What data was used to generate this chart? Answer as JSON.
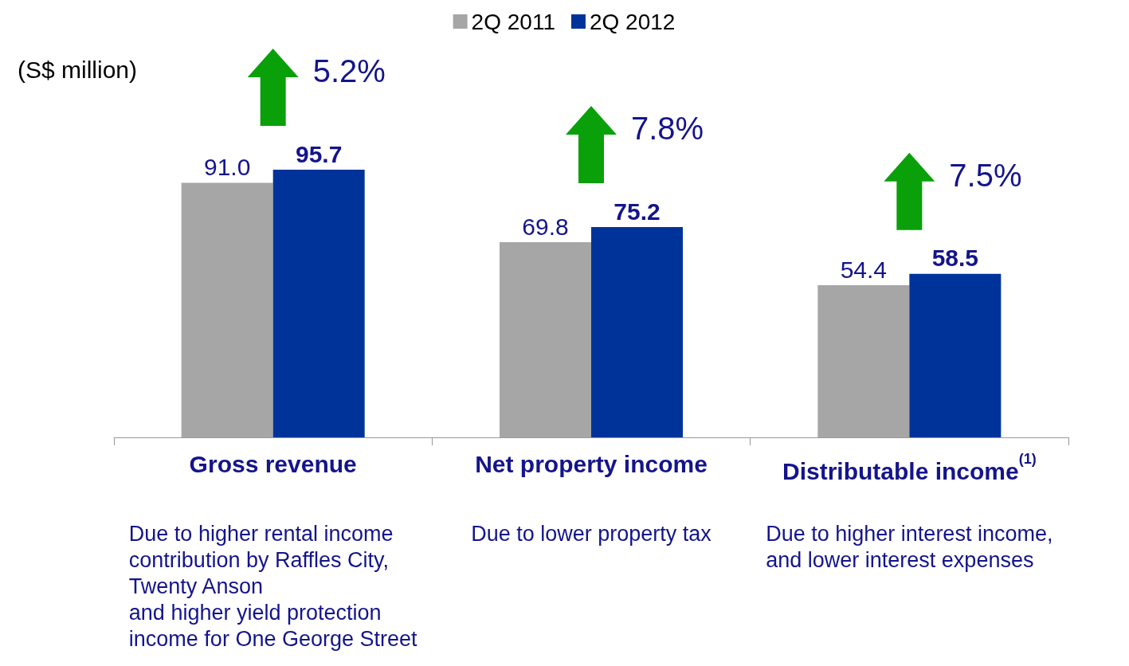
{
  "chart_data": {
    "type": "bar",
    "ylabel": "(S$ million)",
    "categories": [
      "Gross revenue",
      "Net property income",
      "Distributable income$^{(1)}$"
    ],
    "series": [
      {
        "name": "2Q 2011",
        "color": "#a6a6a6",
        "values": [
          91.0,
          69.8,
          54.4
        ],
        "value_labels": [
          "91.0",
          "69.8",
          "54.4"
        ]
      },
      {
        "name": "2Q 2012",
        "color": "#003399",
        "values": [
          95.7,
          75.2,
          58.5
        ],
        "value_labels": [
          "95.7",
          "75.2",
          "58.5"
        ]
      }
    ],
    "legend": "top",
    "grid": false,
    "annotations": [
      {
        "text": "5.2%",
        "x": "Gross revenue",
        "y": 95.7
      },
      {
        "text": "7.8%",
        "x": "Net property income",
        "y": 75.2
      },
      {
        "text": "7.5%",
        "x": "Distributable income$^{(1)}$",
        "y": 58.5
      },
      "Due to higher rental income\ncontribution by Raffles City,\nTwenty Anson\nand higher yield protection\nincome for One George Street",
      "Due to lower property tax",
      "Due to higher interest income,\nand lower interest expenses"
    ]
  }
}
